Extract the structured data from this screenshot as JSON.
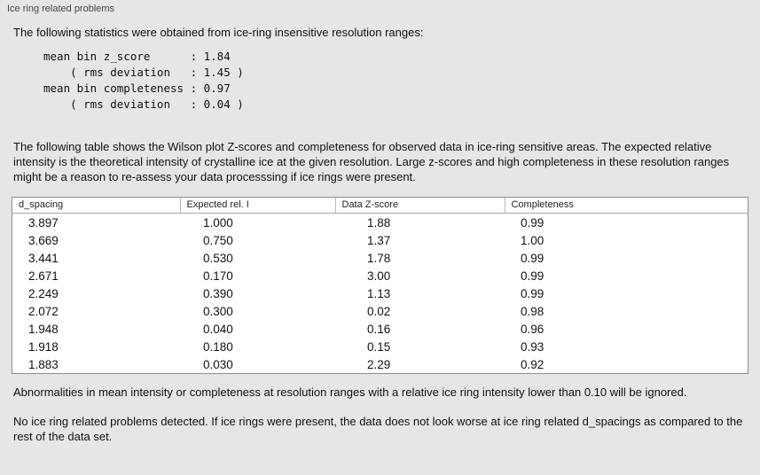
{
  "panel": {
    "title": "Ice ring related problems"
  },
  "intro": "The following statistics were obtained from ice-ring insensitive resolution ranges:",
  "stats_block": "mean bin z_score      : 1.84\n    ( rms deviation   : 1.45 )\nmean bin completeness : 0.97\n    ( rms deviation   : 0.04 )",
  "description": "The following table shows the Wilson plot Z-scores and completeness for observed data in ice-ring sensitive areas. The expected relative intensity is the theoretical intensity of crystalline ice at the given resolution. Large z-scores and high completeness in these resolution ranges might be a reason to re-assess your data processsing if ice rings were present.",
  "table": {
    "columns": [
      "d_spacing",
      "Expected rel. I",
      "Data Z-score",
      "Completeness"
    ],
    "rows": [
      [
        "3.897",
        "1.000",
        "1.88",
        "0.99"
      ],
      [
        "3.669",
        "0.750",
        "1.37",
        "1.00"
      ],
      [
        "3.441",
        "0.530",
        "1.78",
        "0.99"
      ],
      [
        "2.671",
        "0.170",
        "3.00",
        "0.99"
      ],
      [
        "2.249",
        "0.390",
        "1.13",
        "0.99"
      ],
      [
        "2.072",
        "0.300",
        "0.02",
        "0.98"
      ],
      [
        "1.948",
        "0.040",
        "0.16",
        "0.96"
      ],
      [
        "1.918",
        "0.180",
        "0.15",
        "0.93"
      ],
      [
        "1.883",
        "0.030",
        "2.29",
        "0.92"
      ]
    ]
  },
  "footer_ignore_note": "Abnormalities in mean intensity or completeness at resolution ranges with a relative ice ring intensity lower than 0.10 will be ignored.",
  "footer_conclusion": "No ice ring related problems detected. If ice rings were present, the data does not look worse at ice ring related d_spacings as compared to the rest of the data set."
}
